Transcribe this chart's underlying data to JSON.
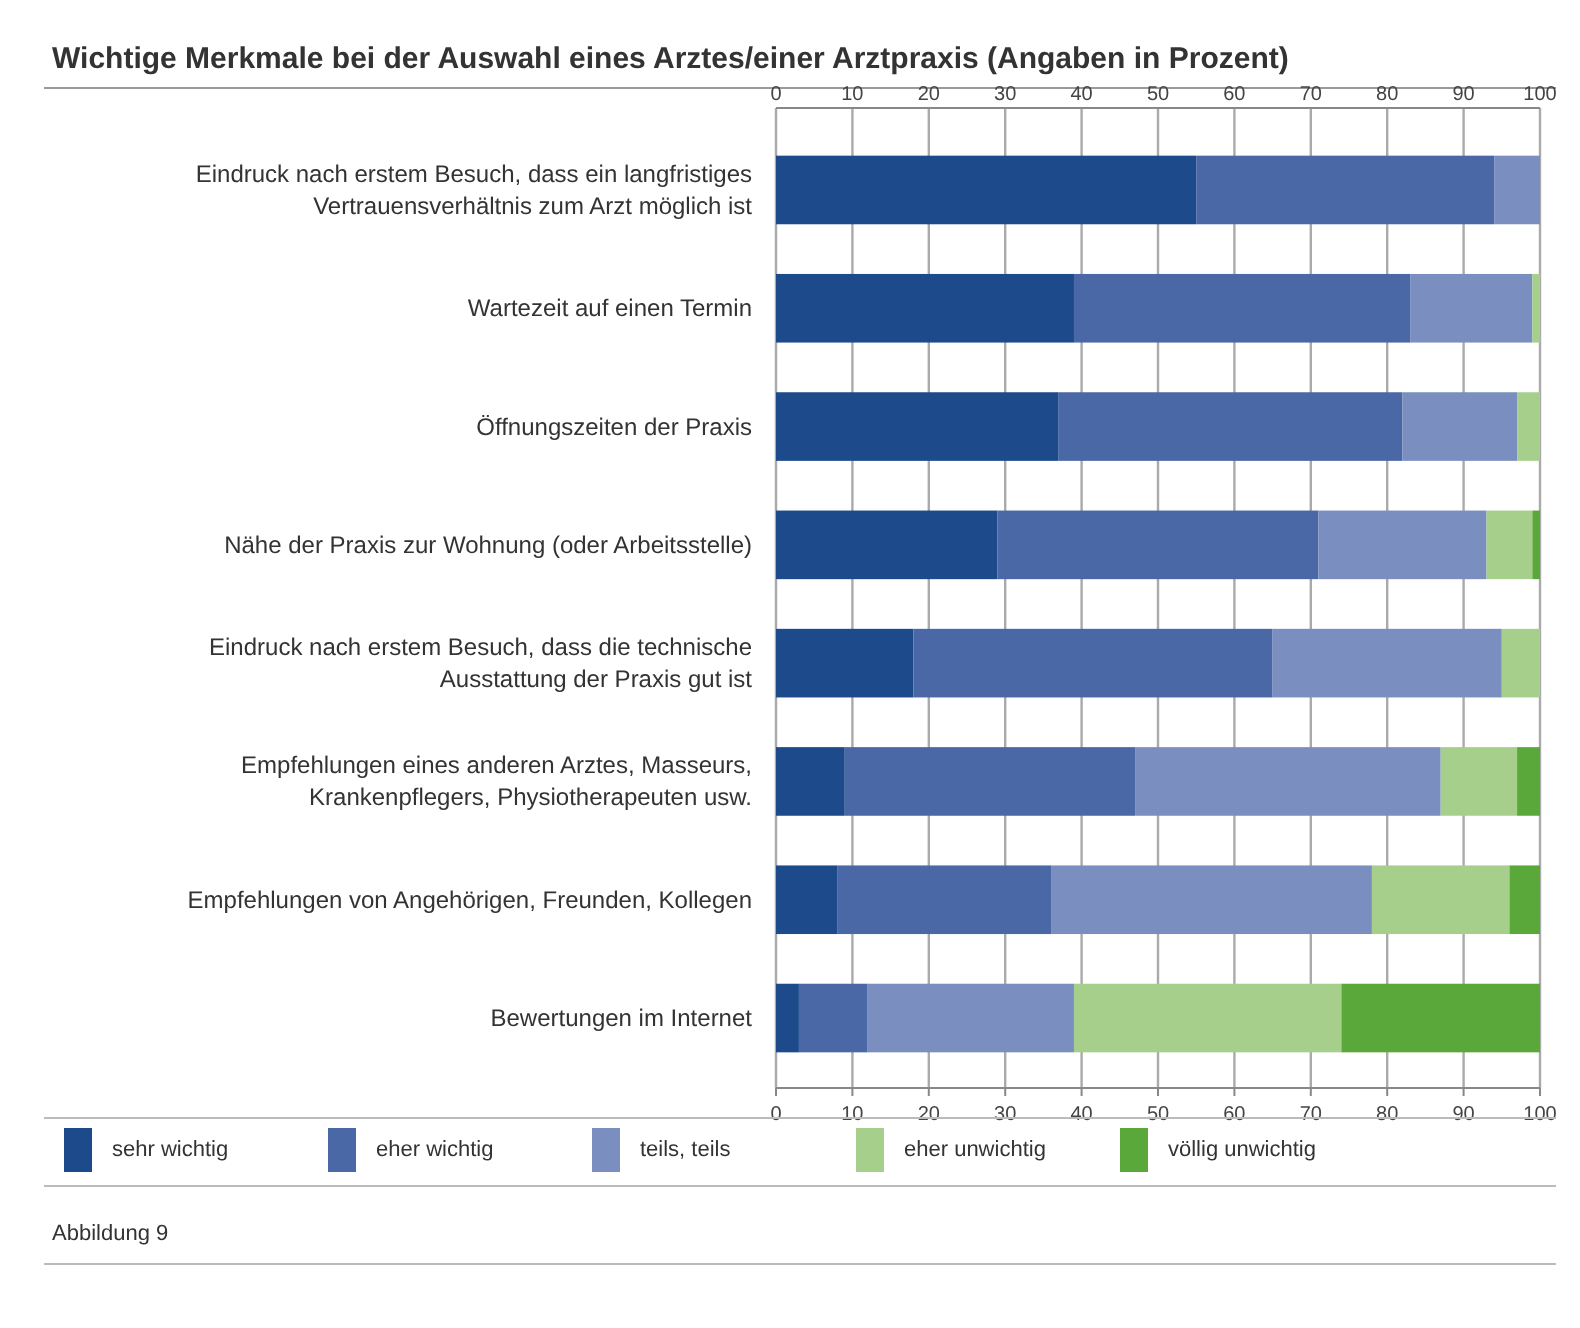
{
  "chart_data": {
    "type": "bar",
    "orientation": "horizontal",
    "stacked": true,
    "title": "Wichtige Merkmale bei der Auswahl eines Arztes/einer Arztpraxis (Angaben in Prozent)",
    "categories": [
      "Eindruck nach erstem Besuch, dass ein langfristiges Vertrauensverhältnis zum Arzt möglich ist",
      "Wartezeit auf einen Termin",
      "Öffnungszeiten der Praxis",
      "Nähe der Praxis zur Wohnung (oder Arbeitsstelle)",
      "Eindruck nach erstem Besuch, dass die technische Ausstattung der Praxis gut ist",
      "Empfehlungen eines anderen Arztes, Masseurs, Krankenpflegers, Physiotherapeuten usw.",
      "Empfehlungen von Angehörigen, Freunden, Kollegen",
      "Bewertungen im Internet"
    ],
    "series": [
      {
        "name": "sehr wichtig",
        "color": "#1c4a8a",
        "values": [
          55,
          39,
          37,
          29,
          18,
          9,
          8,
          3
        ]
      },
      {
        "name": "eher wichtig",
        "color": "#4a68a6",
        "values": [
          39,
          44,
          45,
          42,
          47,
          38,
          28,
          9
        ]
      },
      {
        "name": "teils, teils",
        "color": "#7a8fc0",
        "values": [
          6,
          16,
          15,
          22,
          30,
          40,
          42,
          27
        ]
      },
      {
        "name": "eher unwichtig",
        "color": "#a6cf8c",
        "values": [
          0,
          1,
          3,
          6,
          5,
          10,
          18,
          35
        ]
      },
      {
        "name": "völlig unwichtig",
        "color": "#5aa83a",
        "values": [
          0,
          0,
          0,
          1,
          0,
          3,
          4,
          26
        ]
      }
    ],
    "xlim": [
      0,
      100
    ],
    "xticks": [
      0,
      10,
      20,
      30,
      40,
      50,
      60,
      70,
      80,
      90,
      100
    ],
    "x2lim": [
      0,
      100
    ],
    "x2ticks": [
      0,
      10,
      20,
      30,
      40,
      50,
      60,
      70,
      80,
      90,
      100
    ],
    "grid": "x",
    "legend": "bottom",
    "annotations": [
      "Abbildung 9"
    ]
  }
}
